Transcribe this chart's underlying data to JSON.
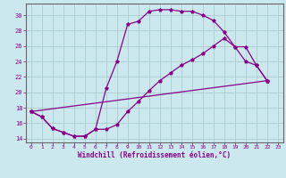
{
  "xlabel": "Windchill (Refroidissement éolien,°C)",
  "bg_color": "#cce8ef",
  "grid_color": "#aacccc",
  "line_color": "#880088",
  "xlim": [
    -0.5,
    23.5
  ],
  "ylim": [
    13.5,
    31.5
  ],
  "xticks": [
    0,
    1,
    2,
    3,
    4,
    5,
    6,
    7,
    8,
    9,
    10,
    11,
    12,
    13,
    14,
    15,
    16,
    17,
    18,
    19,
    20,
    21,
    22,
    23
  ],
  "yticks": [
    14,
    16,
    18,
    20,
    22,
    24,
    26,
    28,
    30
  ],
  "line1_x": [
    0,
    1,
    2,
    3,
    4,
    5,
    6,
    7,
    8,
    9,
    10,
    11,
    12,
    13,
    14,
    15,
    16,
    17,
    18,
    19,
    20,
    21,
    22
  ],
  "line1_y": [
    17.5,
    16.8,
    15.3,
    14.8,
    14.3,
    14.3,
    15.2,
    20.5,
    24.0,
    28.8,
    29.2,
    30.5,
    30.7,
    30.7,
    30.5,
    30.5,
    30.0,
    29.3,
    27.8,
    25.9,
    24.0,
    23.5,
    21.5
  ],
  "line2_x": [
    0,
    1,
    2,
    3,
    4,
    5,
    6,
    7,
    8,
    9,
    10,
    11,
    12,
    13,
    14,
    15,
    16,
    17,
    18,
    19,
    20,
    21,
    22
  ],
  "line2_y": [
    17.5,
    16.8,
    15.3,
    14.8,
    14.3,
    14.3,
    15.2,
    15.2,
    15.8,
    17.5,
    18.8,
    20.2,
    21.5,
    22.5,
    23.5,
    24.2,
    25.0,
    26.0,
    27.0,
    25.9,
    25.9,
    23.5,
    21.5
  ],
  "line3_x": [
    0,
    22
  ],
  "line3_y": [
    17.5,
    21.5
  ]
}
